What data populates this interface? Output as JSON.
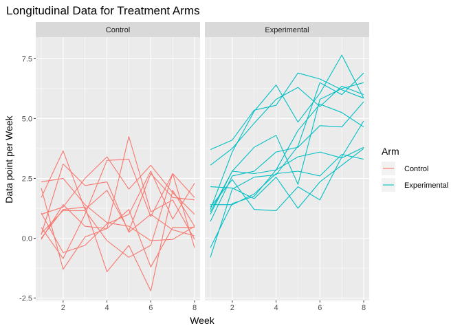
{
  "chart_data": {
    "type": "line",
    "title": "Longitudinal Data for Treatment Arms",
    "xlabel": "Week",
    "ylabel": "Data point per Week",
    "xlim": [
      0.75,
      8.25
    ],
    "ylim": [
      -2.6,
      8.4
    ],
    "x_ticks": [
      2,
      4,
      6,
      8
    ],
    "y_ticks": [
      -2.5,
      0.0,
      2.5,
      5.0,
      7.5
    ],
    "y_tick_labels": [
      "-2.5",
      "0.0",
      "2.5",
      "5.0",
      "7.5"
    ],
    "x": [
      1,
      2,
      3,
      4,
      5,
      6,
      7,
      8
    ],
    "legend": {
      "title": "Arm",
      "placement": "right"
    },
    "grid": true,
    "panels": [
      {
        "name": "Control",
        "color": "#F8766D",
        "series": [
          {
            "values": [
              2.35,
              2.5,
              1.4,
              0.65,
              0.5,
              -0.1,
              -0.05,
              0.5
            ]
          },
          {
            "values": [
              1.7,
              3.65,
              1.2,
              2.0,
              0.3,
              2.7,
              1.7,
              1.6
            ]
          },
          {
            "values": [
              1.05,
              -0.6,
              -0.3,
              0.6,
              1.0,
              2.8,
              0.8,
              2.3
            ]
          },
          {
            "values": [
              0.45,
              -0.85,
              1.0,
              3.25,
              3.3,
              0.9,
              2.7,
              -0.4
            ]
          },
          {
            "values": [
              0.15,
              3.1,
              2.2,
              2.35,
              0.25,
              1.0,
              0.35,
              0.1
            ]
          },
          {
            "values": [
              0.0,
              1.2,
              1.3,
              -1.4,
              -0.3,
              -2.2,
              2.0,
              0.5
            ]
          },
          {
            "values": [
              -0.05,
              1.4,
              0.5,
              0.4,
              1.2,
              -1.2,
              0.45,
              0.45
            ]
          },
          {
            "values": [
              2.1,
              -1.3,
              0.05,
              0.4,
              4.25,
              1.1,
              1.6,
              -0.05
            ]
          },
          {
            "values": [
              1.0,
              1.3,
              2.5,
              3.4,
              2.05,
              3.05,
              1.9,
              1.0
            ]
          },
          {
            "values": [
              0.2,
              1.15,
              1.15,
              -0.1,
              -0.8,
              -0.3,
              2.7,
              1.7
            ]
          }
        ]
      },
      {
        "name": "Experimental",
        "color": "#00BFC4",
        "series": [
          {
            "values": [
              3.7,
              4.1,
              5.35,
              5.55,
              6.9,
              6.65,
              6.2,
              5.85
            ]
          },
          {
            "values": [
              3.05,
              3.75,
              4.8,
              5.8,
              6.3,
              5.5,
              6.35,
              6.0
            ]
          },
          {
            "values": [
              1.2,
              3.6,
              5.3,
              6.4,
              4.85,
              6.05,
              7.65,
              5.85
            ]
          },
          {
            "values": [
              1.1,
              2.8,
              3.8,
              4.3,
              2.25,
              5.8,
              6.25,
              6.5
            ]
          },
          {
            "values": [
              -0.8,
              2.05,
              2.55,
              2.65,
              3.85,
              6.5,
              6.0,
              6.9
            ]
          },
          {
            "values": [
              0.7,
              2.6,
              2.8,
              3.6,
              3.8,
              4.7,
              4.65,
              5.7
            ]
          },
          {
            "values": [
              -0.4,
              1.45,
              1.75,
              2.85,
              4.5,
              5.6,
              5.25,
              4.65
            ]
          },
          {
            "values": [
              2.15,
              2.1,
              1.65,
              2.55,
              1.25,
              2.35,
              3.05,
              3.75
            ]
          },
          {
            "values": [
              1.3,
              2.45,
              1.2,
              1.15,
              2.15,
              1.6,
              3.4,
              4.9
            ]
          },
          {
            "values": [
              1.4,
              1.4,
              1.85,
              2.7,
              2.8,
              2.6,
              3.5,
              3.3
            ]
          },
          {
            "values": [
              1.0,
              2.8,
              2.7,
              2.85,
              3.4,
              3.6,
              3.35,
              3.8
            ]
          }
        ]
      }
    ]
  }
}
